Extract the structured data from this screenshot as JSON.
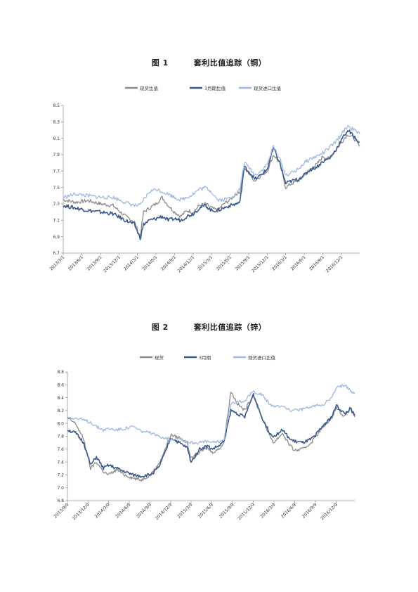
{
  "chart_data": [
    {
      "type": "line",
      "title_num": "图 1",
      "title_text": "套利比值追踪（铜）",
      "ylim": [
        6.7,
        8.5
      ],
      "yticks": [
        "6.7",
        "6.9",
        "7.1",
        "7.3",
        "7.5",
        "7.7",
        "7.9",
        "8.1",
        "8.3",
        "8.5"
      ],
      "x_start": "2013/3/1",
      "x_end": "2017/3/1",
      "xticks": [
        "2013/3/1",
        "2013/6/1",
        "2013/9/1",
        "2013/12/1",
        "2014/3/1",
        "2014/6/1",
        "2014/9/1",
        "2014/12/1",
        "2015/3/1",
        "2015/6/1",
        "2015/9/1",
        "2015/12/1",
        "2016/3/1",
        "2016/6/1",
        "2016/9/1",
        "2016/12/1"
      ],
      "grid": false,
      "legend_position": "top",
      "series": [
        {
          "name": "现货比值",
          "color": "#8c8c8c",
          "x": [
            "2013/3/1",
            "2013/5/1",
            "2013/7/1",
            "2013/9/1",
            "2013/11/1",
            "2014/1/1",
            "2014/2/15",
            "2014/3/15",
            "2014/4/1",
            "2014/5/1",
            "2014/6/1",
            "2014/7/1",
            "2014/8/1",
            "2014/9/1",
            "2014/10/1",
            "2014/11/1",
            "2014/12/1",
            "2015/1/1",
            "2015/2/1",
            "2015/3/1",
            "2015/4/1",
            "2015/5/1",
            "2015/6/1",
            "2015/7/1",
            "2015/7/20",
            "2015/8/10",
            "2015/9/1",
            "2015/10/1",
            "2015/11/1",
            "2015/12/1",
            "2016/1/1",
            "2016/2/1",
            "2016/3/1",
            "2016/4/1",
            "2016/5/1",
            "2016/6/1",
            "2016/7/1",
            "2016/8/1",
            "2016/9/1",
            "2016/10/1",
            "2016/11/1",
            "2016/12/1",
            "2017/1/1",
            "2017/2/1",
            "2017/3/1"
          ],
          "values": [
            7.35,
            7.32,
            7.34,
            7.3,
            7.28,
            7.15,
            7.08,
            6.9,
            7.2,
            7.25,
            7.3,
            7.38,
            7.28,
            7.2,
            7.15,
            7.22,
            7.2,
            7.28,
            7.3,
            7.25,
            7.22,
            7.3,
            7.35,
            7.42,
            7.45,
            7.72,
            7.68,
            7.58,
            7.65,
            7.7,
            7.9,
            7.8,
            7.5,
            7.55,
            7.58,
            7.65,
            7.72,
            7.78,
            7.88,
            7.85,
            7.95,
            8.05,
            8.15,
            8.1,
            8.0
          ]
        },
        {
          "name": "3月期比值",
          "color": "#3a5a8c",
          "x": [
            "2013/3/1",
            "2013/5/1",
            "2013/7/1",
            "2013/9/1",
            "2013/11/1",
            "2014/1/1",
            "2014/2/15",
            "2014/3/15",
            "2014/4/1",
            "2014/5/1",
            "2014/6/1",
            "2014/7/1",
            "2014/8/1",
            "2014/9/1",
            "2014/10/1",
            "2014/11/1",
            "2014/12/1",
            "2015/1/1",
            "2015/2/1",
            "2015/3/1",
            "2015/4/1",
            "2015/5/1",
            "2015/6/1",
            "2015/7/1",
            "2015/7/20",
            "2015/8/10",
            "2015/9/1",
            "2015/10/1",
            "2015/11/1",
            "2015/12/1",
            "2016/1/1",
            "2016/2/1",
            "2016/3/1",
            "2016/4/1",
            "2016/5/1",
            "2016/6/1",
            "2016/7/1",
            "2016/8/1",
            "2016/9/1",
            "2016/10/1",
            "2016/11/1",
            "2016/12/1",
            "2017/1/1",
            "2017/2/1",
            "2017/3/1"
          ],
          "values": [
            7.28,
            7.25,
            7.22,
            7.2,
            7.18,
            7.1,
            7.05,
            6.88,
            7.05,
            7.1,
            7.12,
            7.15,
            7.1,
            7.12,
            7.1,
            7.15,
            7.18,
            7.25,
            7.28,
            7.22,
            7.22,
            7.25,
            7.28,
            7.3,
            7.32,
            7.75,
            7.7,
            7.6,
            7.65,
            7.72,
            7.98,
            7.8,
            7.55,
            7.58,
            7.6,
            7.65,
            7.72,
            7.75,
            7.82,
            7.85,
            7.95,
            8.08,
            8.2,
            8.12,
            8.05
          ]
        },
        {
          "name": "现货进口比值",
          "color": "#9fb9e0",
          "x": [
            "2013/3/1",
            "2013/5/1",
            "2013/7/1",
            "2013/9/1",
            "2013/11/1",
            "2014/1/1",
            "2014/2/15",
            "2014/3/15",
            "2014/4/1",
            "2014/5/1",
            "2014/6/1",
            "2014/7/1",
            "2014/8/1",
            "2014/9/1",
            "2014/10/1",
            "2014/11/1",
            "2014/12/1",
            "2015/1/1",
            "2015/2/1",
            "2015/3/1",
            "2015/4/1",
            "2015/5/1",
            "2015/6/1",
            "2015/7/1",
            "2015/7/20",
            "2015/8/10",
            "2015/9/1",
            "2015/10/1",
            "2015/11/1",
            "2015/12/1",
            "2016/1/1",
            "2016/2/1",
            "2016/3/1",
            "2016/4/1",
            "2016/5/1",
            "2016/6/1",
            "2016/7/1",
            "2016/8/1",
            "2016/9/1",
            "2016/10/1",
            "2016/11/1",
            "2016/12/1",
            "2017/1/1",
            "2017/2/1",
            "2017/3/1"
          ],
          "values": [
            7.38,
            7.42,
            7.4,
            7.38,
            7.38,
            7.32,
            7.28,
            7.28,
            7.35,
            7.45,
            7.48,
            7.45,
            7.42,
            7.38,
            7.35,
            7.38,
            7.42,
            7.48,
            7.5,
            7.45,
            7.35,
            7.35,
            7.38,
            7.42,
            7.48,
            7.8,
            7.75,
            7.65,
            7.7,
            7.78,
            8.0,
            7.85,
            7.65,
            7.68,
            7.72,
            7.8,
            7.85,
            7.88,
            7.92,
            7.98,
            8.05,
            8.15,
            8.25,
            8.2,
            8.15
          ]
        }
      ]
    },
    {
      "type": "line",
      "title_num": "图 2",
      "title_text": "套利比值追踪（锌）",
      "ylim": [
        6.8,
        8.8
      ],
      "yticks": [
        "6.8",
        "7.0",
        "7.2",
        "7.4",
        "7.6",
        "7.8",
        "8.0",
        "8.2",
        "8.4",
        "8.6",
        "8.8"
      ],
      "x_start": "2013/9/9",
      "x_end": "2017/3/1",
      "xticks": [
        "2013/9/9",
        "2013/12/9",
        "2014/3/9",
        "2014/6/9",
        "2014/9/9",
        "2014/12/9",
        "2015/3/9",
        "2015/6/9",
        "2015/9/9",
        "2015/12/9",
        "2016/3/9",
        "2016/6/9",
        "2016/9/9",
        "2016/12/9"
      ],
      "grid": false,
      "legend_position": "top",
      "series": [
        {
          "name": "现货",
          "color": "#8c8c8c",
          "x": [
            "2013/9/9",
            "2013/10/15",
            "2013/11/20",
            "2013/12/20",
            "2014/1/15",
            "2014/2/15",
            "2014/3/9",
            "2014/4/15",
            "2014/5/20",
            "2014/6/25",
            "2014/8/1",
            "2014/9/9",
            "2014/10/15",
            "2014/11/15",
            "2014/12/9",
            "2015/1/15",
            "2015/2/20",
            "2015/3/9",
            "2015/4/15",
            "2015/5/20",
            "2015/6/9",
            "2015/7/10",
            "2015/8/1",
            "2015/9/1",
            "2015/10/1",
            "2015/11/1",
            "2015/12/9",
            "2016/1/15",
            "2016/2/20",
            "2016/3/9",
            "2016/4/15",
            "2016/5/20",
            "2016/6/9",
            "2016/7/15",
            "2016/8/20",
            "2016/9/9",
            "2016/10/15",
            "2016/11/20",
            "2016/12/9",
            "2017/1/15",
            "2017/2/10",
            "2017/3/1"
          ],
          "values": [
            8.08,
            8.0,
            7.75,
            7.3,
            7.4,
            7.25,
            7.2,
            7.28,
            7.2,
            7.15,
            7.12,
            7.2,
            7.35,
            7.6,
            7.82,
            7.78,
            7.7,
            7.45,
            7.55,
            7.62,
            7.55,
            7.6,
            7.7,
            8.5,
            8.3,
            8.2,
            8.45,
            8.1,
            7.8,
            7.7,
            7.85,
            7.65,
            7.58,
            7.6,
            7.7,
            7.8,
            7.95,
            8.1,
            8.25,
            8.1,
            8.25,
            8.1
          ]
        },
        {
          "name": "3月期",
          "color": "#3a5a8c",
          "x": [
            "2013/9/9",
            "2013/10/15",
            "2013/11/20",
            "2013/12/20",
            "2014/1/15",
            "2014/2/15",
            "2014/3/9",
            "2014/4/15",
            "2014/5/20",
            "2014/6/25",
            "2014/8/1",
            "2014/9/9",
            "2014/10/15",
            "2014/11/15",
            "2014/12/9",
            "2015/1/15",
            "2015/2/20",
            "2015/3/9",
            "2015/4/15",
            "2015/5/20",
            "2015/6/9",
            "2015/7/10",
            "2015/8/1",
            "2015/9/1",
            "2015/10/1",
            "2015/11/1",
            "2015/12/9",
            "2016/1/15",
            "2016/2/20",
            "2016/3/9",
            "2016/4/15",
            "2016/5/20",
            "2016/6/9",
            "2016/7/15",
            "2016/8/20",
            "2016/9/9",
            "2016/10/15",
            "2016/11/20",
            "2016/12/9",
            "2017/1/15",
            "2017/2/10",
            "2017/3/1"
          ],
          "values": [
            7.9,
            7.85,
            7.7,
            7.35,
            7.48,
            7.3,
            7.35,
            7.3,
            7.25,
            7.2,
            7.18,
            7.2,
            7.3,
            7.55,
            7.78,
            7.7,
            7.62,
            7.4,
            7.6,
            7.65,
            7.6,
            7.65,
            7.72,
            8.2,
            8.15,
            8.1,
            8.45,
            8.1,
            7.85,
            7.8,
            7.9,
            7.75,
            7.72,
            7.7,
            7.75,
            7.82,
            7.98,
            8.1,
            8.28,
            8.15,
            8.22,
            8.12
          ]
        },
        {
          "name": "现货进口比值",
          "color": "#9fb9e0",
          "x": [
            "2013/9/9",
            "2013/10/15",
            "2013/11/20",
            "2013/12/20",
            "2014/1/15",
            "2014/2/15",
            "2014/3/9",
            "2014/4/15",
            "2014/5/20",
            "2014/6/25",
            "2014/8/1",
            "2014/9/9",
            "2014/10/15",
            "2014/11/15",
            "2014/12/9",
            "2015/1/15",
            "2015/2/20",
            "2015/3/9",
            "2015/4/15",
            "2015/5/20",
            "2015/6/9",
            "2015/7/10",
            "2015/8/1",
            "2015/9/1",
            "2015/10/1",
            "2015/11/1",
            "2015/12/9",
            "2016/1/15",
            "2016/2/20",
            "2016/3/9",
            "2016/4/15",
            "2016/5/20",
            "2016/6/9",
            "2016/7/15",
            "2016/8/20",
            "2016/9/9",
            "2016/10/15",
            "2016/11/20",
            "2016/12/9",
            "2017/1/15",
            "2017/2/10",
            "2017/3/1"
          ],
          "values": [
            8.1,
            8.08,
            8.05,
            8.02,
            7.95,
            7.9,
            7.92,
            7.9,
            7.92,
            7.95,
            7.88,
            7.85,
            7.8,
            7.78,
            7.75,
            7.78,
            7.72,
            7.7,
            7.7,
            7.72,
            7.7,
            7.72,
            7.75,
            8.3,
            8.35,
            8.35,
            8.5,
            8.45,
            8.3,
            8.25,
            8.28,
            8.2,
            8.2,
            8.22,
            8.25,
            8.28,
            8.3,
            8.4,
            8.55,
            8.6,
            8.5,
            8.48
          ]
        }
      ]
    }
  ]
}
